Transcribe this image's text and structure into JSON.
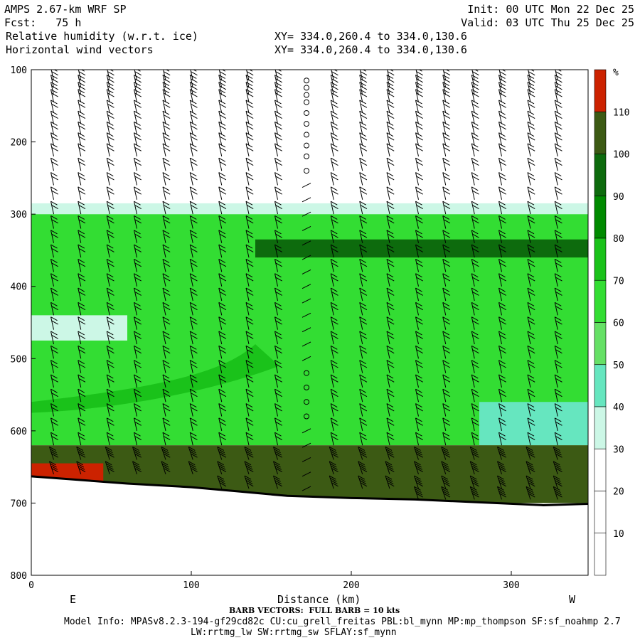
{
  "header": {
    "line1_left": "AMPS 2.67-km WRF SP",
    "line2_left": "Fcst:   75 h",
    "line1_right": "Init: 00 UTC Mon 22 Dec 25",
    "line2_right": "Valid: 03 UTC Thu 25 Dec 25",
    "field1": "Relative humidity (w.r.t. ice)",
    "field2": "Horizontal wind vectors",
    "xy1": "XY= 334.0,260.4 to 334.0,130.6",
    "xy2": "XY= 334.0,260.4 to 334.0,130.6"
  },
  "footer": {
    "barb_note": "BARB VECTORS:  FULL BARB = 10 kts",
    "model_info": "Model Info: MPASv8.2.3-194-gf29cd82c CU:cu_grell_freitas PBL:bl_mynn MP:mp_thompson SF:sf_noahmp 2.7",
    "model_info2": "LW:rrtmg_lw SW:rrtmg_sw SFLAY:sf_mynn"
  },
  "chart_data": {
    "type": "heatmap",
    "title": "Relative humidity (w.r.t. ice)",
    "xlabel": "Distance (km)",
    "ylabel": "",
    "x_endpoint_labels": [
      "E",
      "W"
    ],
    "xlim": [
      0,
      348
    ],
    "ylim": [
      800,
      100
    ],
    "x_ticks": [
      0,
      100,
      200,
      300
    ],
    "y_ticks": [
      100,
      200,
      300,
      400,
      500,
      600,
      700,
      800
    ],
    "colorbar": {
      "unit": "%",
      "levels": [
        10,
        20,
        30,
        40,
        50,
        60,
        70,
        80,
        90,
        100,
        110
      ],
      "band_colors": [
        "#ffffff",
        "#ffffff",
        "#ffffff",
        "#ccf7e6",
        "#66e6bf",
        "#66e066",
        "#33dd33",
        "#1ac21a",
        "#008a00",
        "#0d6b0d",
        "#3c5a14",
        "#cc2200"
      ]
    },
    "terrain_pressure": [
      {
        "x": 0,
        "p": 663
      },
      {
        "x": 30,
        "p": 668
      },
      {
        "x": 60,
        "p": 673
      },
      {
        "x": 100,
        "p": 678
      },
      {
        "x": 130,
        "p": 684
      },
      {
        "x": 160,
        "p": 690
      },
      {
        "x": 200,
        "p": 693
      },
      {
        "x": 240,
        "p": 695
      },
      {
        "x": 280,
        "p": 699
      },
      {
        "x": 320,
        "p": 703
      },
      {
        "x": 348,
        "p": 701
      }
    ],
    "rh_regions": [
      {
        "label": "cloud-top (30-40%)",
        "pressure_range": [
          285,
          300
        ],
        "rh": 35
      },
      {
        "label": "upper moist layer",
        "pressure_range": [
          300,
          620
        ],
        "rh": 65
      },
      {
        "label": "dry pocket",
        "x_range": [
          0,
          60
        ],
        "pressure_range": [
          440,
          475
        ],
        "rh": 35
      },
      {
        "label": "moist band",
        "x_range": [
          140,
          348
        ],
        "pressure_range": [
          335,
          360
        ],
        "rh": 95
      },
      {
        "label": "dry pocket east",
        "x_range": [
          280,
          348
        ],
        "pressure_range": [
          560,
          620
        ],
        "rh": 45
      },
      {
        "label": "near-surface saturated layer",
        "pressure_range": [
          620,
          700
        ],
        "rh": 105
      },
      {
        "label": "supersaturated",
        "x_range": [
          0,
          45
        ],
        "pressure_range": [
          645,
          670
        ],
        "rh": 115
      }
    ],
    "barb_columns_km": [
      14,
      31,
      49,
      66,
      84,
      101,
      119,
      136,
      154,
      172,
      189,
      207,
      224,
      242,
      259,
      277,
      294,
      312,
      329
    ],
    "barb_levels_hpa": [
      115,
      125,
      135,
      145,
      160,
      175,
      190,
      205,
      220,
      240,
      260,
      280,
      300,
      320,
      340,
      360,
      380,
      400,
      420,
      440,
      460,
      480,
      500,
      520,
      540,
      560,
      580,
      600,
      620,
      640,
      660,
      680,
      695
    ],
    "calm_column_km": 172,
    "barb_speed_kts_by_level": "approx 10-20 kts aloft, 30-50 kts near surface"
  }
}
